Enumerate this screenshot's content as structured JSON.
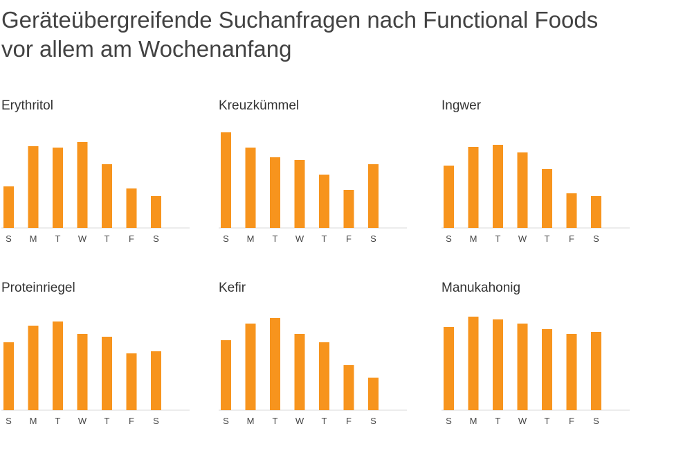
{
  "title": {
    "line1": "Geräteübergreifende Suchanfragen nach Functional Foods",
    "line2": "vor allem am Wochenanfang"
  },
  "colors": {
    "bar": "#f7941d",
    "baseline": "#d9d9d9"
  },
  "chart_data": [
    {
      "type": "bar",
      "title": "Erythritol",
      "categories": [
        "S",
        "M",
        "T",
        "W",
        "T",
        "F",
        "S"
      ],
      "values": [
        60,
        118,
        116,
        124,
        92,
        57,
        46
      ],
      "ylim": [
        0,
        140
      ]
    },
    {
      "type": "bar",
      "title": "Kreuzkümmel",
      "categories": [
        "S",
        "M",
        "T",
        "W",
        "T",
        "F",
        "S"
      ],
      "values": [
        138,
        116,
        102,
        98,
        77,
        55,
        92
      ],
      "ylim": [
        0,
        140
      ]
    },
    {
      "type": "bar",
      "title": "Ingwer",
      "categories": [
        "S",
        "M",
        "T",
        "W",
        "T",
        "F",
        "S"
      ],
      "values": [
        90,
        117,
        120,
        109,
        85,
        50,
        46
      ],
      "ylim": [
        0,
        140
      ]
    },
    {
      "type": "bar",
      "title": "Proteinriegel",
      "categories": [
        "S",
        "M",
        "T",
        "W",
        "T",
        "F",
        "S"
      ],
      "values": [
        98,
        122,
        128,
        110,
        106,
        82,
        85
      ],
      "ylim": [
        0,
        140
      ]
    },
    {
      "type": "bar",
      "title": "Kefir",
      "categories": [
        "S",
        "M",
        "T",
        "W",
        "T",
        "F",
        "S"
      ],
      "values": [
        101,
        125,
        133,
        110,
        98,
        65,
        47
      ],
      "ylim": [
        0,
        140
      ]
    },
    {
      "type": "bar",
      "title": "Manukahonig",
      "categories": [
        "S",
        "M",
        "T",
        "W",
        "T",
        "F",
        "S"
      ],
      "values": [
        120,
        135,
        131,
        125,
        117,
        110,
        113
      ],
      "ylim": [
        0,
        140
      ]
    }
  ]
}
